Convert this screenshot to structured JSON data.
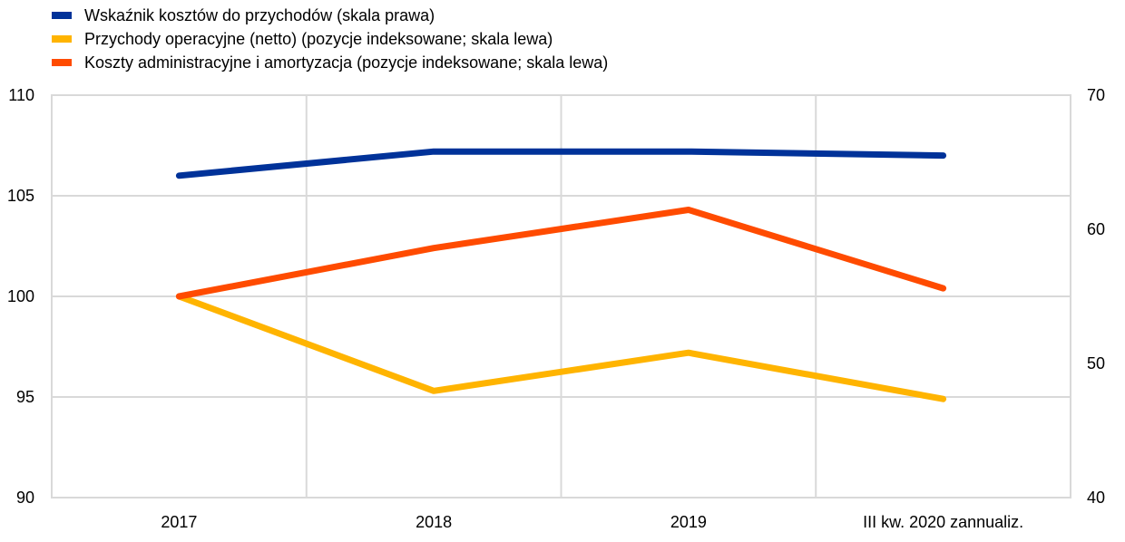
{
  "chart_data": {
    "type": "line",
    "categories": [
      "2017",
      "2018",
      "2019",
      "III kw. 2020 zannualiz."
    ],
    "series": [
      {
        "name": "Wskaźnik kosztów do przychodów (skala prawa)",
        "axis": "right",
        "color": "#003299",
        "values": [
          64.0,
          65.8,
          65.8,
          65.5
        ]
      },
      {
        "name": "Przychody operacyjne (netto) (pozycje indeksowane; skala lewa)",
        "axis": "left",
        "color": "#FFB400",
        "values": [
          100.0,
          95.3,
          97.2,
          94.9
        ]
      },
      {
        "name": "Koszty administracyjne i amortyzacja (pozycje indeksowane; skala lewa)",
        "axis": "left",
        "color": "#FF4B00",
        "values": [
          100.0,
          102.4,
          104.3,
          100.4
        ]
      }
    ],
    "ylim_left": [
      90,
      110
    ],
    "yticks_left": [
      "90",
      "95",
      "100",
      "105",
      "110"
    ],
    "ylim_right": [
      40,
      70
    ],
    "yticks_right": [
      "40",
      "50",
      "60",
      "70"
    ],
    "grid": true,
    "legend_placement": "top-left"
  }
}
